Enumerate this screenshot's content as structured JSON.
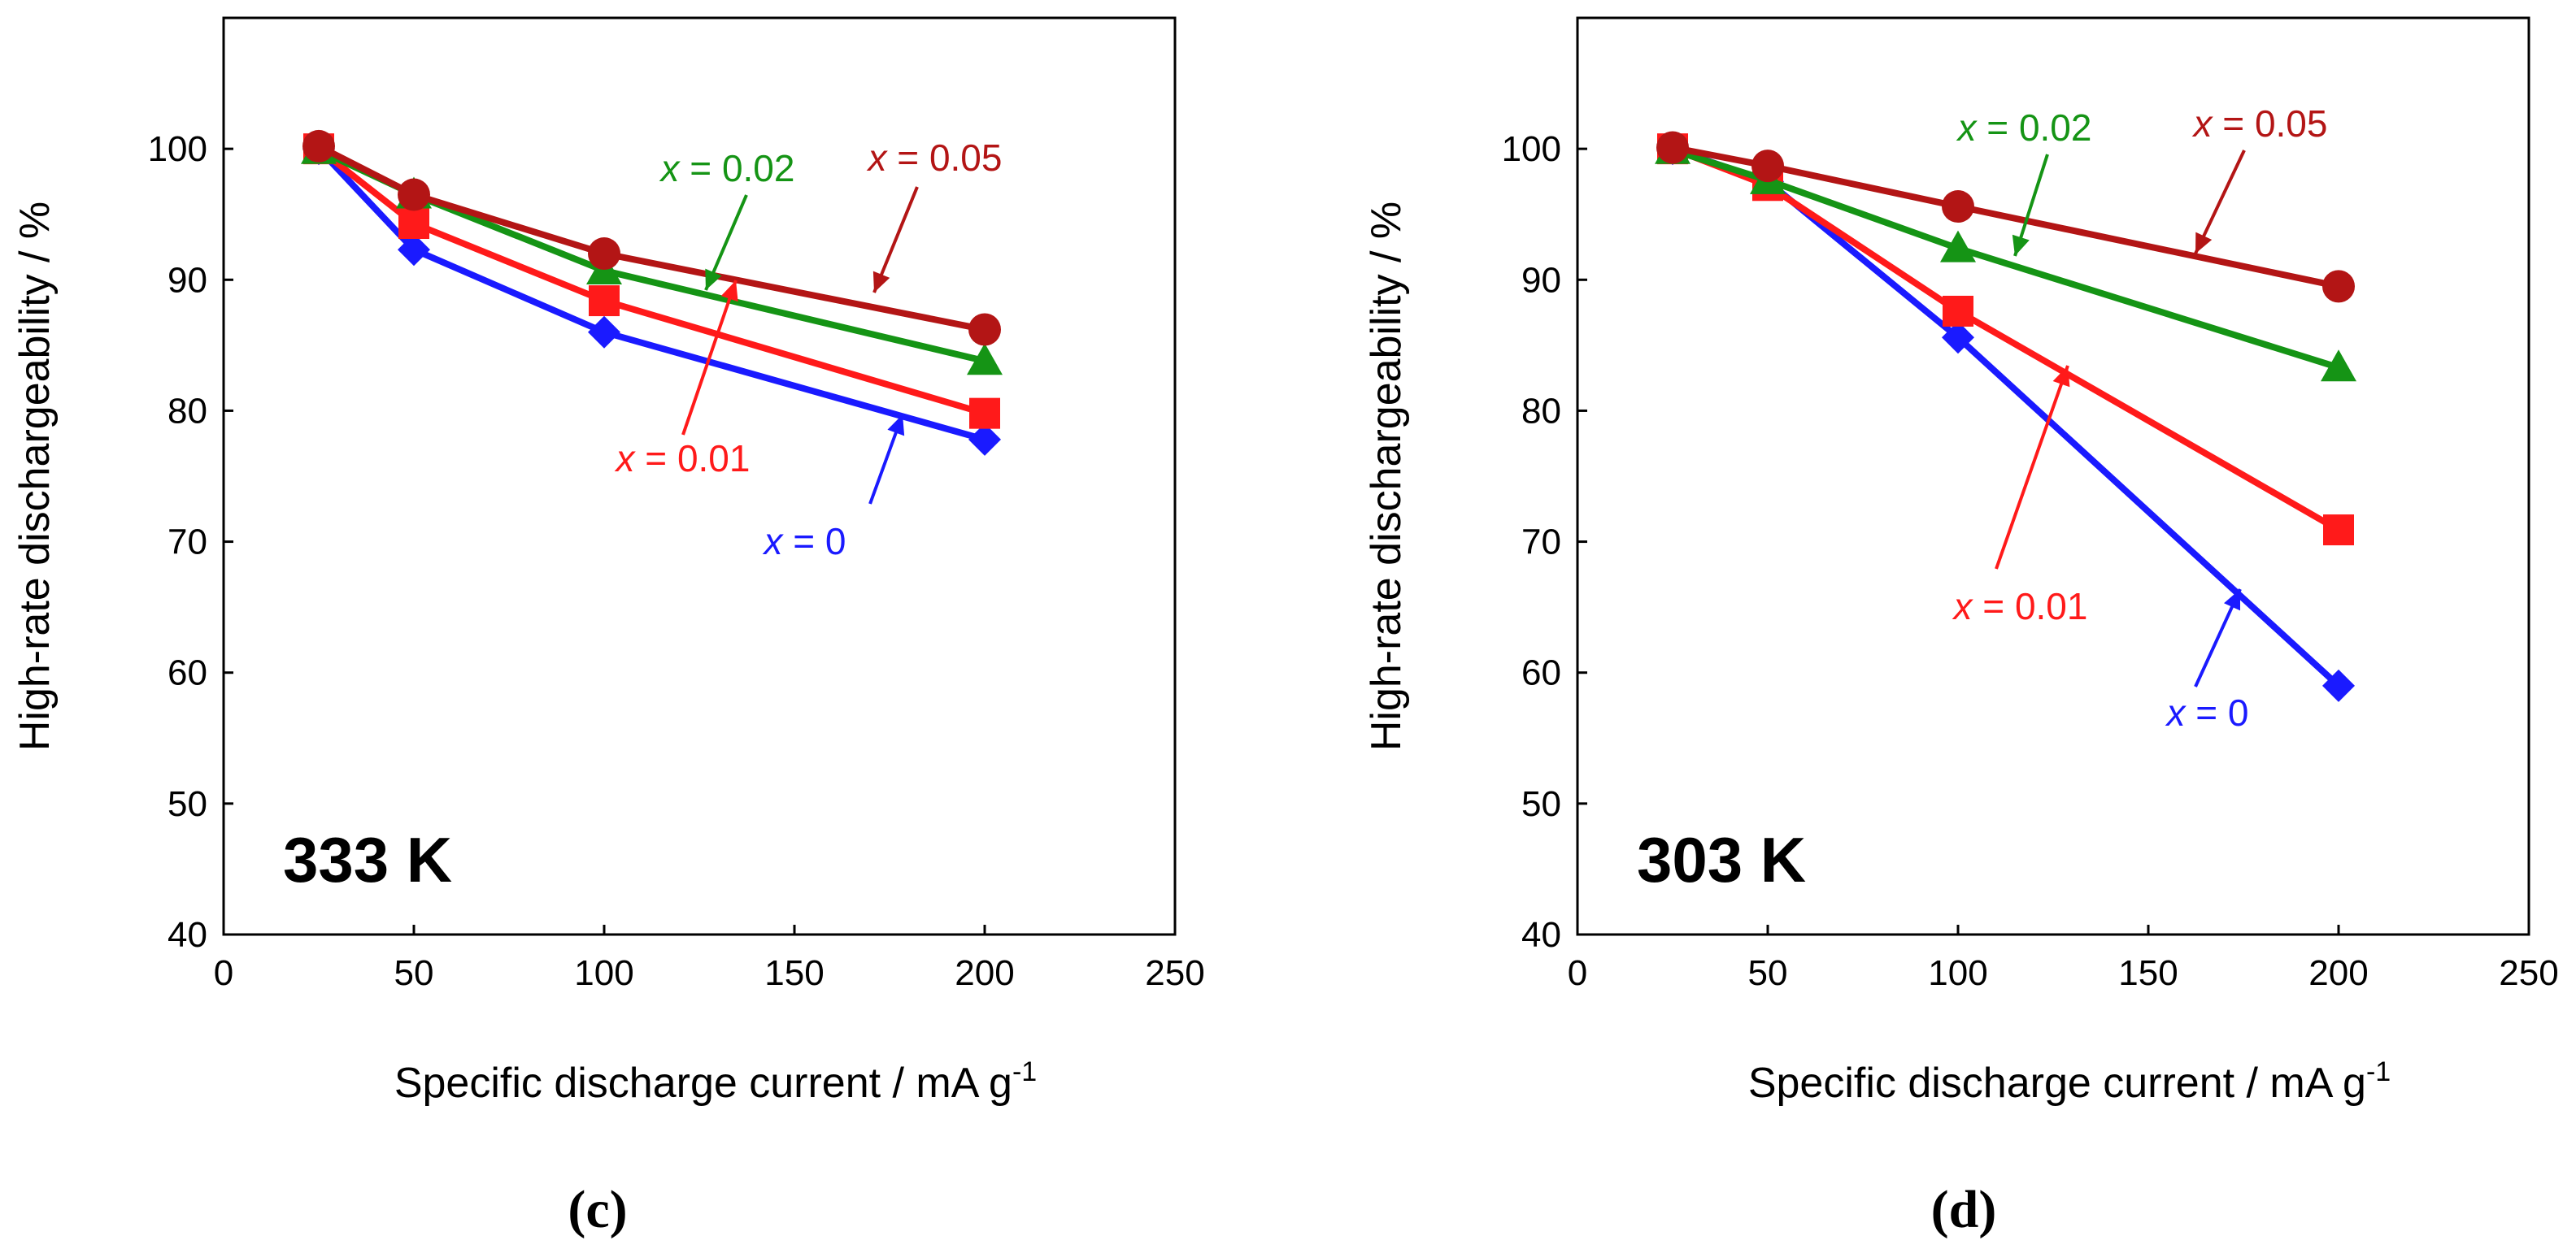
{
  "chart_data": [
    {
      "type": "line",
      "panel_label": "(c)",
      "annotation": "333 K",
      "xlabel": "Specific discharge current / mA g",
      "xlabel_sup": "-1",
      "ylabel": "High-rate dischargeability / %",
      "xlim": [
        0,
        250
      ],
      "ylim": [
        40,
        110
      ],
      "x_ticks": [
        "0",
        "50",
        "100",
        "150",
        "200",
        "250"
      ],
      "y_ticks": [
        "40",
        "50",
        "60",
        "70",
        "80",
        "90",
        "100"
      ],
      "x": [
        25,
        50,
        100,
        200
      ],
      "series": [
        {
          "name": "x = 0",
          "var": "x",
          "eq": " = 0",
          "color": "#1a1aff",
          "marker": "diamond",
          "values": [
            100,
            92.3,
            86,
            77.8
          ]
        },
        {
          "name": "x = 0.01",
          "var": "x",
          "eq": " = 0.01",
          "color": "#ff1a1a",
          "marker": "square",
          "values": [
            100,
            94.3,
            88.4,
            79.8
          ]
        },
        {
          "name": "x = 0.02",
          "var": "x",
          "eq": " = 0.02",
          "color": "#159415",
          "marker": "triangle",
          "values": [
            99.9,
            96.5,
            90.7,
            83.8
          ]
        },
        {
          "name": "x = 0.05",
          "var": "x",
          "eq": " = 0.05",
          "color": "#b31515",
          "marker": "circle",
          "values": [
            100.2,
            96.5,
            92,
            86.2
          ]
        }
      ]
    },
    {
      "type": "line",
      "panel_label": "(d)",
      "annotation": "303 K",
      "xlabel": "Specific discharge current / mA g",
      "xlabel_sup": "-1",
      "ylabel": "High-rate dischargeability / %",
      "xlim": [
        0,
        250
      ],
      "ylim": [
        40,
        110
      ],
      "x_ticks": [
        "0",
        "50",
        "100",
        "150",
        "200",
        "250"
      ],
      "y_ticks": [
        "40",
        "50",
        "60",
        "70",
        "80",
        "90",
        "100"
      ],
      "x": [
        25,
        50,
        100,
        200
      ],
      "series": [
        {
          "name": "x = 0",
          "var": "x",
          "eq": " = 0",
          "color": "#1a1aff",
          "marker": "diamond",
          "values": [
            100,
            97.5,
            85.6,
            59
          ]
        },
        {
          "name": "x = 0.01",
          "var": "x",
          "eq": " = 0.01",
          "color": "#ff1a1a",
          "marker": "square",
          "values": [
            100,
            97.2,
            87.6,
            70.9
          ]
        },
        {
          "name": "x = 0.02",
          "var": "x",
          "eq": " = 0.02",
          "color": "#159415",
          "marker": "triangle",
          "values": [
            99.9,
            97.6,
            92.4,
            83.3
          ]
        },
        {
          "name": "x = 0.05",
          "var": "x",
          "eq": " = 0.05",
          "color": "#b31515",
          "marker": "circle",
          "values": [
            100.1,
            98.7,
            95.6,
            89.5
          ]
        }
      ]
    }
  ]
}
